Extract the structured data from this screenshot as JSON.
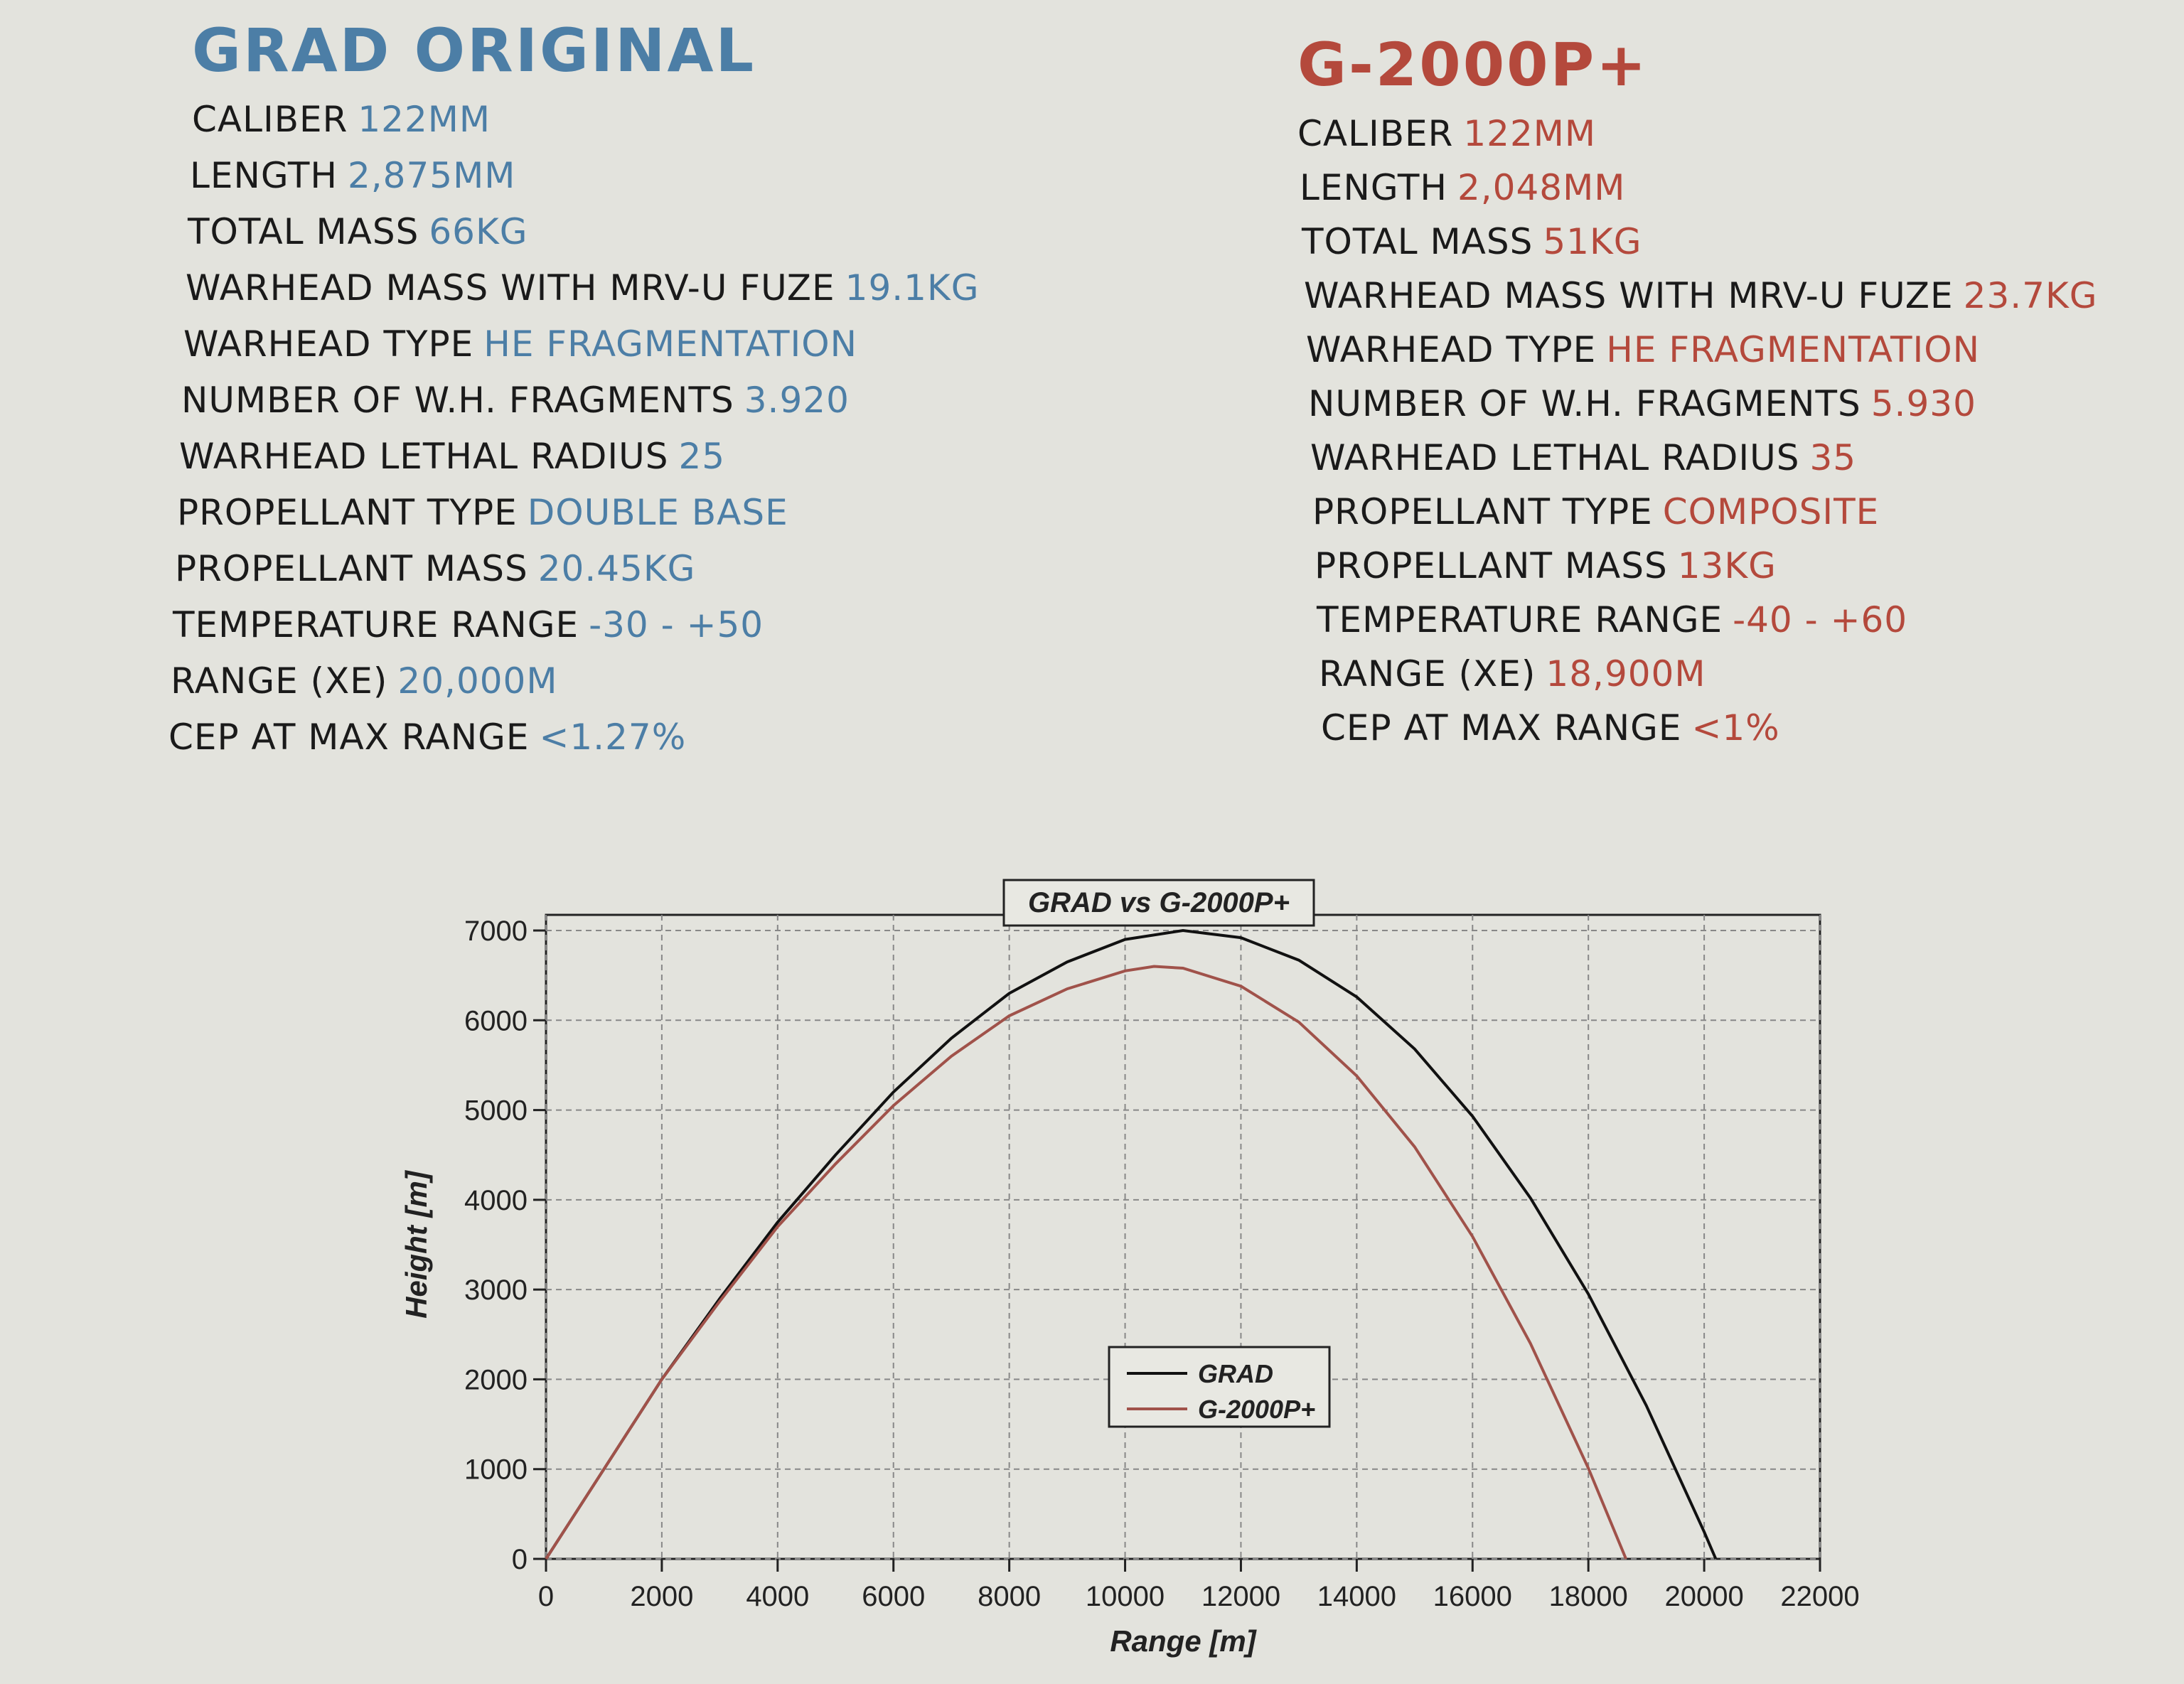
{
  "left": {
    "title": "GRAD ORIGINAL",
    "rows": [
      [
        "CALIBER",
        "122MM"
      ],
      [
        "LENGTH",
        "2,875MM"
      ],
      [
        "TOTAL MASS",
        "66KG"
      ],
      [
        "WARHEAD MASS WITH MRV-U FUZE",
        "19.1KG"
      ],
      [
        "WARHEAD TYPE",
        "HE FRAGMENTATION"
      ],
      [
        "NUMBER OF W.H. FRAGMENTS",
        "3.920"
      ],
      [
        "WARHEAD LETHAL RADIUS",
        "25"
      ],
      [
        "PROPELLANT TYPE",
        "DOUBLE BASE"
      ],
      [
        "PROPELLANT MASS",
        "20.45KG"
      ],
      [
        "TEMPERATURE RANGE",
        "-30 - +50"
      ],
      [
        "RANGE (XE)",
        "20,000M"
      ],
      [
        "CEP AT MAX RANGE",
        "<1.27%"
      ]
    ]
  },
  "right": {
    "title": "G-2000P+",
    "rows": [
      [
        "CALIBER",
        "122MM"
      ],
      [
        "LENGTH",
        "2,048MM"
      ],
      [
        "TOTAL MASS",
        "51KG"
      ],
      [
        "WARHEAD MASS WITH MRV-U FUZE",
        "23.7KG"
      ],
      [
        "WARHEAD TYPE",
        "HE FRAGMENTATION"
      ],
      [
        "NUMBER OF W.H. FRAGMENTS",
        "5.930"
      ],
      [
        "WARHEAD LETHAL RADIUS",
        "35"
      ],
      [
        "PROPELLANT TYPE",
        "COMPOSITE"
      ],
      [
        "PROPELLANT MASS",
        "13KG"
      ],
      [
        "TEMPERATURE RANGE",
        "-40 - +60"
      ],
      [
        "RANGE (XE)",
        "18,900M"
      ],
      [
        "CEP AT MAX RANGE",
        "<1%"
      ]
    ]
  },
  "chart_data": {
    "type": "line",
    "title": "GRAD vs G-2000P+",
    "x_label": "Range [m]",
    "y_label": "Height [m]",
    "series": [
      {
        "name": "GRAD",
        "color": "#111111",
        "x": [
          0,
          1000,
          2000,
          3000,
          4000,
          5000,
          6000,
          7000,
          8000,
          9000,
          10000,
          11000,
          12000,
          13000,
          14000,
          15000,
          16000,
          17000,
          18000,
          19000,
          20000,
          20200
        ],
        "values": [
          0,
          1000,
          2000,
          2900,
          3750,
          4500,
          5200,
          5800,
          6300,
          6650,
          6900,
          7000,
          6920,
          6670,
          6260,
          5680,
          4930,
          4020,
          2950,
          1710,
          300,
          0
        ]
      },
      {
        "name": "G-2000P+",
        "color": "#a0524a",
        "x": [
          0,
          1000,
          2000,
          3000,
          4000,
          5000,
          6000,
          7000,
          8000,
          9000,
          10000,
          10500,
          11000,
          12000,
          13000,
          14000,
          15000,
          16000,
          17000,
          18000,
          18650
        ],
        "values": [
          0,
          1000,
          2000,
          2870,
          3700,
          4400,
          5050,
          5600,
          6050,
          6350,
          6550,
          6600,
          6580,
          6380,
          5980,
          5380,
          4590,
          3590,
          2400,
          1010,
          0
        ]
      }
    ],
    "xlim": [
      0,
      22000
    ],
    "ylim": [
      0,
      7000
    ],
    "xticks": [
      0,
      2000,
      4000,
      6000,
      8000,
      10000,
      12000,
      14000,
      16000,
      18000,
      20000,
      22000
    ],
    "yticks": [
      0,
      1000,
      2000,
      3000,
      4000,
      5000,
      6000,
      7000
    ],
    "grid": true,
    "legend": "lower center"
  }
}
